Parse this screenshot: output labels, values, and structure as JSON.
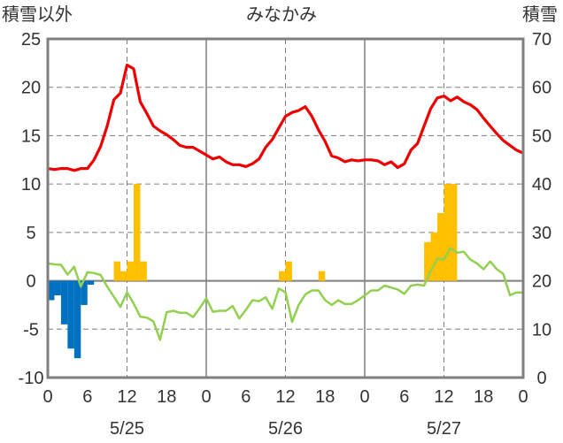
{
  "chart_data": {
    "type": "line",
    "title": "みなかみ",
    "y_left_label": "積雪以外",
    "y_right_label": "積雪",
    "y_left_ticks": [
      25,
      20,
      15,
      10,
      5,
      0,
      -5,
      -10
    ],
    "y_right_ticks": [
      70,
      60,
      50,
      40,
      30,
      20,
      10,
      0
    ],
    "ylim_left": [
      -10,
      25
    ],
    "ylim_right": [
      0,
      70
    ],
    "xlim": [
      0,
      72
    ],
    "x_ticks": [
      0,
      6,
      12,
      18,
      24,
      30,
      36,
      42,
      48,
      54,
      60,
      66,
      72
    ],
    "x_tick_labels": [
      "0",
      "6",
      "12",
      "18",
      "0",
      "6",
      "12",
      "18",
      "0",
      "6",
      "12",
      "18",
      "0"
    ],
    "dates": [
      {
        "label": "5/25",
        "x": 12
      },
      {
        "label": "5/26",
        "x": 36
      },
      {
        "label": "5/27",
        "x": 60
      }
    ],
    "grid": {
      "vertical_solid": [
        24,
        48
      ],
      "vertical_dashed": [
        12,
        36,
        60
      ],
      "horizontal_dashed": true
    },
    "colors": {
      "temperature": "#ee0000",
      "precip_bar": "#ffc000",
      "neg_bar": "#0070c0",
      "snow_line": "#92d050",
      "frame": "#7f7f7f"
    },
    "series": [
      {
        "axis": "left",
        "type": "line",
        "color": "#ee0000",
        "x": [
          0,
          1,
          2,
          3,
          4,
          5,
          6,
          7,
          8,
          9,
          10,
          11,
          12,
          13,
          14,
          15,
          16,
          17,
          18,
          19,
          20,
          21,
          22,
          23,
          24,
          25,
          26,
          27,
          28,
          29,
          30,
          31,
          32,
          33,
          34,
          35,
          36,
          37,
          38,
          39,
          40,
          41,
          42,
          43,
          44,
          45,
          46,
          47,
          48,
          49,
          50,
          51,
          52,
          53,
          54,
          55,
          56,
          57,
          58,
          59,
          60,
          61,
          62,
          63,
          64,
          65,
          66,
          67,
          68,
          69,
          70,
          71,
          72
        ],
        "values": [
          11.6,
          11.5,
          11.6,
          11.6,
          11.4,
          11.6,
          11.6,
          12.5,
          13.9,
          16.0,
          18.7,
          19.4,
          22.3,
          21.9,
          18.5,
          17.3,
          16.0,
          15.5,
          15.1,
          14.6,
          14.0,
          13.8,
          13.8,
          13.4,
          13.0,
          12.6,
          12.8,
          12.3,
          12.0,
          12.0,
          11.8,
          12.1,
          12.6,
          13.8,
          14.6,
          15.8,
          17.0,
          17.4,
          17.6,
          18.0,
          17.0,
          15.6,
          14.4,
          12.9,
          12.7,
          12.3,
          12.5,
          12.4,
          12.5,
          12.5,
          12.4,
          12.0,
          12.3,
          11.7,
          12.1,
          13.5,
          14.2,
          16.0,
          17.8,
          18.9,
          19.1,
          18.6,
          19.0,
          18.5,
          18.2,
          17.7,
          16.8,
          16.0,
          15.2,
          14.5,
          14.0,
          13.5,
          13.2
        ]
      },
      {
        "axis": "left",
        "type": "bar",
        "color": "#ffc000",
        "x": [
          10,
          11,
          12,
          13,
          14,
          35,
          36,
          41,
          57,
          58,
          59,
          60,
          61
        ],
        "values": [
          2,
          1,
          2,
          10,
          2,
          1,
          2,
          1,
          4,
          5,
          7,
          10,
          10
        ]
      },
      {
        "axis": "left",
        "type": "bar",
        "color": "#0070c0",
        "x": [
          0,
          1,
          2,
          3,
          4,
          5,
          6
        ],
        "values": [
          -2,
          -1.5,
          -4.5,
          -7,
          -8,
          -2.5,
          -0.4
        ]
      },
      {
        "axis": "right",
        "type": "line",
        "color": "#92d050",
        "x": [
          0,
          1,
          2,
          3,
          4,
          5,
          6,
          7,
          8,
          9,
          10,
          11,
          12,
          13,
          14,
          15,
          16,
          17,
          18,
          19,
          20,
          21,
          22,
          23,
          24,
          25,
          26,
          27,
          28,
          29,
          30,
          31,
          32,
          33,
          34,
          35,
          36,
          37,
          38,
          39,
          40,
          41,
          42,
          43,
          44,
          45,
          46,
          47,
          48,
          49,
          50,
          51,
          52,
          53,
          54,
          55,
          56,
          57,
          58,
          59,
          60,
          61,
          62,
          63,
          64,
          65,
          66,
          67,
          68,
          69,
          70,
          71,
          72
        ],
        "values": [
          23.6,
          23.4,
          23.3,
          21.3,
          22.9,
          18.8,
          21.8,
          21.6,
          21.2,
          18.8,
          16.7,
          14.6,
          17.6,
          15.3,
          12.6,
          12.4,
          11.6,
          7.8,
          13.5,
          13.8,
          13.4,
          13.4,
          12.5,
          14.3,
          16.4,
          13.6,
          13.8,
          13.8,
          14.8,
          12.2,
          14.0,
          16.0,
          15.8,
          16.6,
          14.2,
          18.4,
          17.6,
          11.5,
          15.0,
          17.2,
          18.0,
          18.0,
          16.0,
          15.0,
          16.0,
          15.2,
          15.2,
          16.0,
          17.0,
          18.0,
          18.0,
          19.0,
          18.6,
          18.2,
          17.3,
          19.0,
          19.2,
          19.0,
          22.0,
          24.6,
          24.4,
          26.8,
          25.8,
          26.0,
          24.4,
          23.6,
          22.4,
          24.0,
          22.4,
          21.4,
          17.0,
          17.6,
          17.6
        ]
      }
    ]
  }
}
